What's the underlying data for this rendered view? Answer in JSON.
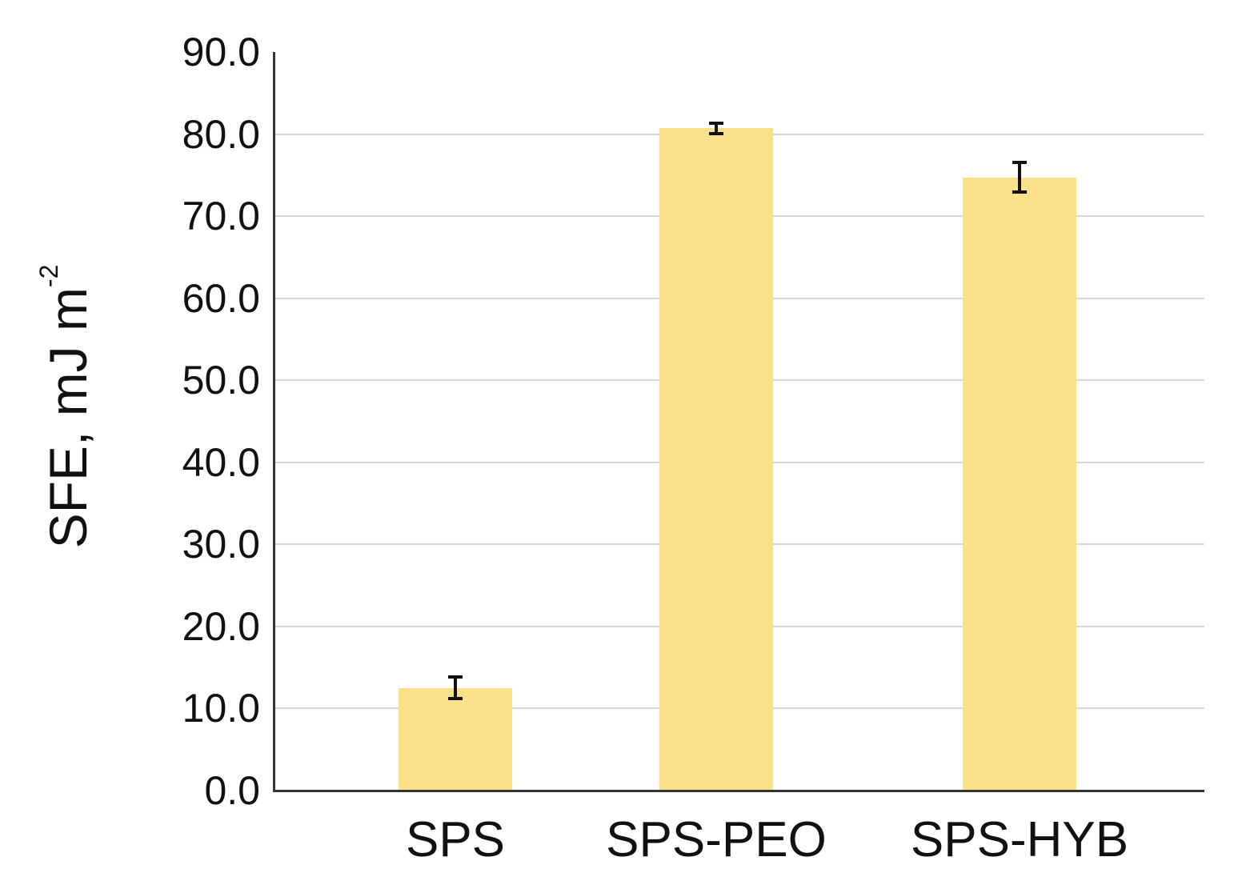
{
  "chart_data": {
    "type": "bar",
    "title": "",
    "xlabel": "",
    "ylabel": "SFE, mJ m-2",
    "ylabel_parts": {
      "main": "SFE, mJ m",
      "superscript": "-2"
    },
    "categories": [
      "SPS",
      "SPS-PEO",
      "SPS-HYB"
    ],
    "values": [
      12.5,
      80.7,
      74.7
    ],
    "errors": [
      1.3,
      0.6,
      1.8
    ],
    "ylim": [
      0,
      90
    ],
    "yticks": [
      "0.0",
      "10.0",
      "20.0",
      "30.0",
      "40.0",
      "50.0",
      "60.0",
      "70.0",
      "80.0",
      "90.0"
    ],
    "grid": true,
    "legend": null,
    "colors": {
      "bar": "#fde08a",
      "error_bar": "#111111",
      "grid": "#d9d9d9",
      "axis": "#333333"
    }
  }
}
